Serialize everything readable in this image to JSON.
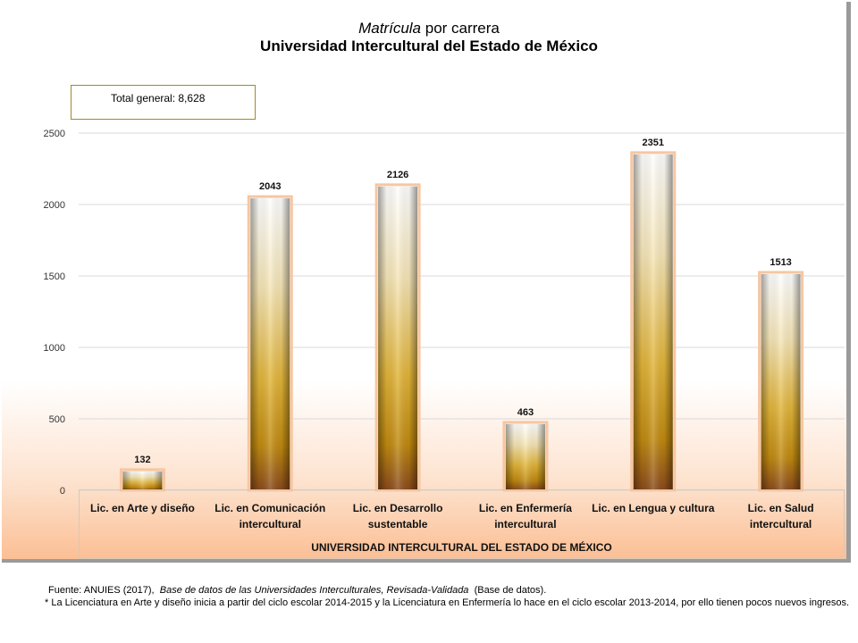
{
  "title": {
    "line1_italic": "Matrícula",
    "line1_rest": " por carrera",
    "line2": "Universidad Intercultural del Estado de México"
  },
  "total_box": "Total general: 8,628",
  "chart_data": {
    "type": "bar",
    "categories": [
      [
        "Lic. en Arte y diseño"
      ],
      [
        "Lic. en Comunicación",
        "intercultural"
      ],
      [
        "Lic. en Desarrollo",
        "sustentable"
      ],
      [
        "Lic. en Enfermería",
        "intercultural"
      ],
      [
        "Lic. en Lengua y cultura"
      ],
      [
        "Lic. en Salud",
        "intercultural"
      ]
    ],
    "values": [
      132,
      2043,
      2126,
      463,
      2351,
      1513
    ],
    "data_labels": [
      "132",
      "2043",
      "2126",
      "463",
      "2351",
      "1513"
    ],
    "group_label": "UNIVERSIDAD INTERCULTURAL DEL ESTADO DE MÉXICO",
    "ylim": [
      0,
      2500
    ],
    "yticks": [
      0,
      500,
      1000,
      1500,
      2000,
      2500
    ],
    "grid": true,
    "legend": "none"
  },
  "footnotes": {
    "source_prefix": "Fuente: ANUIES (2017),",
    "source_italic": "Base de datos de las Universidades  Interculturales, Revisada-Validada",
    "source_suffix": "(Base de datos).",
    "note": "* La Licenciatura en Arte y diseño inicia a partir del ciclo escolar 2014-2015  y la Licenciatura en Enfermería  lo hace en el ciclo escolar 2013-2014,  por ello tienen pocos nuevos ingresos."
  }
}
